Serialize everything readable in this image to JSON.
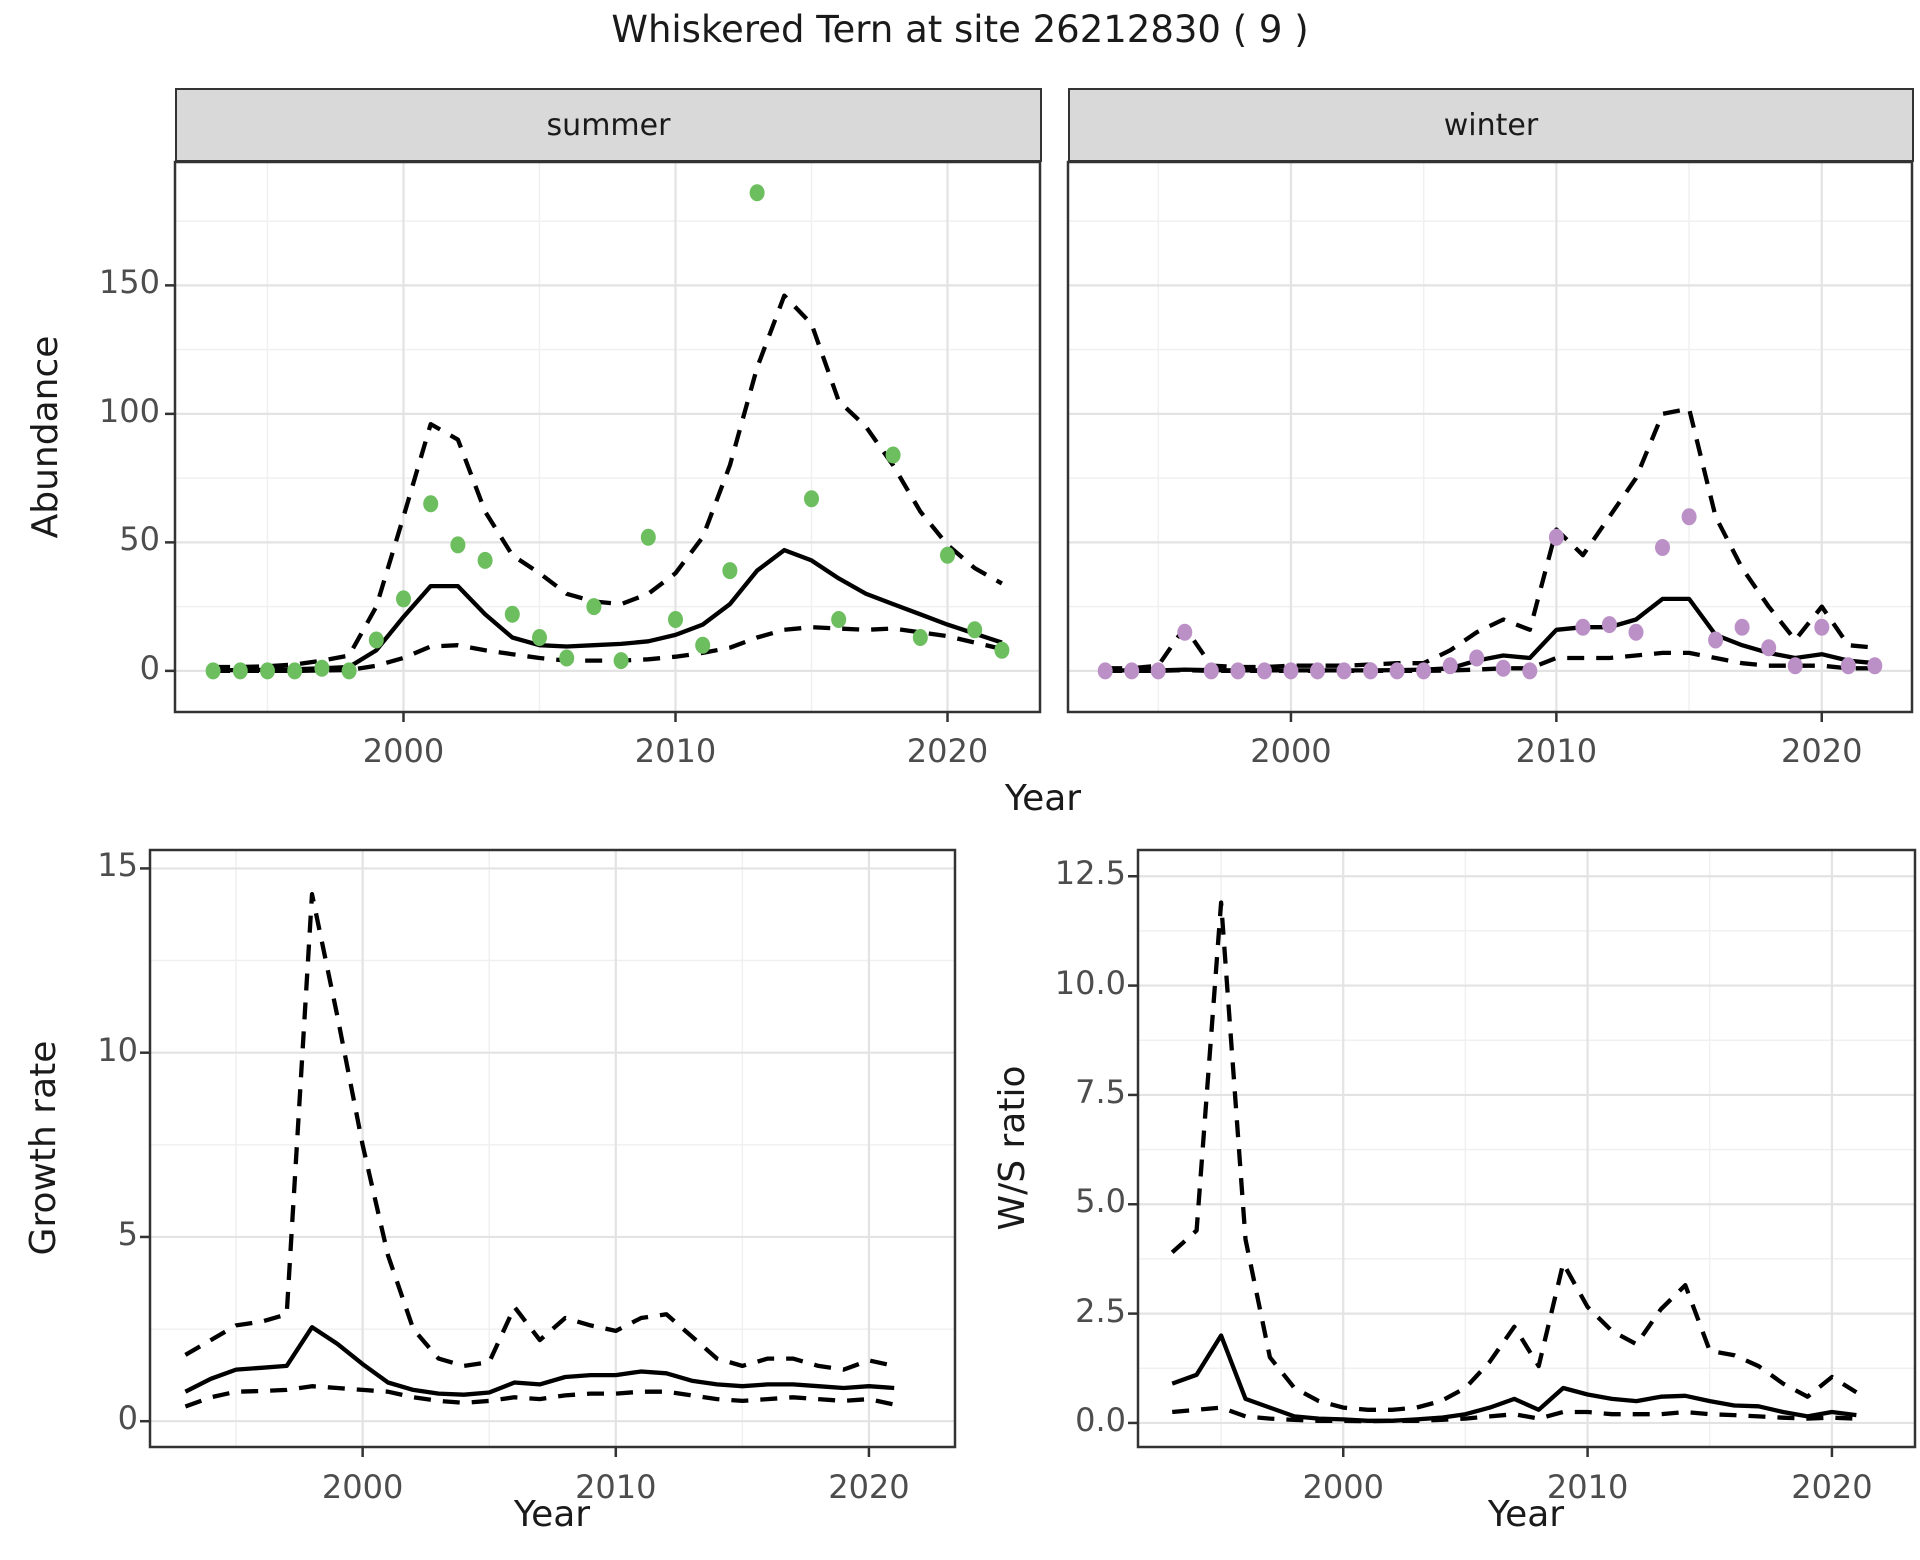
{
  "figure_title": "Whiskered Tern at site 26212830 ( 9 )",
  "colors": {
    "summer_point": "#6cbe5e",
    "winter_point": "#bb90c6",
    "line": "#000000",
    "strip_bg": "#d9d9d9",
    "panel_border": "#333333",
    "grid_major": "#e3e3e3",
    "grid_minor": "#f0f0f0",
    "tick_label": "#4d4d4d",
    "text": "#1a1a1a"
  },
  "chart_data": [
    {
      "type": "line",
      "strip_label": "summer",
      "xlabel": "Year",
      "ylabel": "Abundance",
      "xlim": [
        1991.6,
        2023.4
      ],
      "ylim": [
        -16,
        198
      ],
      "x_ticks": [
        2000,
        2010,
        2020
      ],
      "x_tick_labels": [
        "2000",
        "2010",
        "2020"
      ],
      "x_minor": [
        1995,
        2005,
        2015
      ],
      "y_ticks": [
        0,
        50,
        100,
        150
      ],
      "y_tick_labels": [
        "0",
        "50",
        "100",
        "150"
      ],
      "y_minor": [
        25,
        75,
        125,
        175
      ],
      "x": [
        1993,
        1994,
        1995,
        1996,
        1997,
        1998,
        1999,
        2000,
        2001,
        2002,
        2003,
        2004,
        2005,
        2006,
        2007,
        2008,
        2009,
        2010,
        2011,
        2012,
        2013,
        2014,
        2015,
        2016,
        2017,
        2018,
        2019,
        2020,
        2021,
        2022
      ],
      "series": [
        {
          "name": "estimate",
          "style": "solid",
          "y": [
            0.3,
            0.3,
            0.4,
            0.6,
            1,
            1.5,
            8,
            21,
            33,
            33,
            22,
            13,
            10,
            9.5,
            10,
            10.5,
            11.5,
            14,
            18,
            26,
            39,
            47,
            43,
            36,
            30,
            26,
            22,
            18,
            14.5,
            11
          ]
        },
        {
          "name": "upper-ci",
          "style": "dashed",
          "y": [
            1.5,
            1.5,
            1.8,
            2.5,
            4,
            6,
            25,
            60,
            96,
            90,
            62,
            45,
            38,
            30,
            27,
            26,
            30,
            38,
            52,
            80,
            118,
            146,
            135,
            105,
            95,
            80,
            62,
            49,
            40,
            34
          ]
        },
        {
          "name": "lower-ci",
          "style": "dashed",
          "y": [
            0,
            0,
            0,
            0,
            0.2,
            0.3,
            2,
            5,
            9.5,
            10,
            8,
            6.5,
            5,
            4,
            4,
            4,
            4.5,
            5.5,
            7,
            9,
            13,
            16,
            17,
            16.5,
            16,
            16.5,
            15,
            13.5,
            11,
            8.5
          ]
        }
      ],
      "points": {
        "name": "observed-summer",
        "color": "#6cbe5e",
        "x": [
          1993,
          1994,
          1995,
          1996,
          1997,
          1998,
          1999,
          2000,
          2001,
          2002,
          2003,
          2004,
          2005,
          2006,
          2007,
          2008,
          2009,
          2010,
          2011,
          2012,
          2013,
          2015,
          2016,
          2018,
          2019,
          2020,
          2021,
          2022
        ],
        "y": [
          0,
          0,
          0,
          0,
          1,
          0,
          12,
          28,
          65,
          49,
          43,
          22,
          13,
          5,
          25,
          4,
          52,
          20,
          10,
          39,
          186,
          67,
          20,
          84,
          13,
          45,
          16,
          8
        ]
      }
    },
    {
      "type": "line",
      "strip_label": "winter",
      "xlabel": "Year",
      "ylabel": "Abundance",
      "xlim": [
        1991.6,
        2023.4
      ],
      "ylim": [
        -16,
        198
      ],
      "x_ticks": [
        2000,
        2010,
        2020
      ],
      "x_tick_labels": [
        "2000",
        "2010",
        "2020"
      ],
      "x_minor": [
        1995,
        2005,
        2015
      ],
      "y_ticks": [
        0,
        50,
        100,
        150
      ],
      "y_tick_labels": [
        "0",
        "50",
        "100",
        "150"
      ],
      "y_minor": [
        25,
        75,
        125,
        175
      ],
      "x": [
        1993,
        1994,
        1995,
        1996,
        1997,
        1998,
        1999,
        2000,
        2001,
        2002,
        2003,
        2004,
        2005,
        2006,
        2007,
        2008,
        2009,
        2010,
        2011,
        2012,
        2013,
        2014,
        2015,
        2016,
        2017,
        2018,
        2019,
        2020,
        2021,
        2022
      ],
      "series": [
        {
          "name": "estimate",
          "style": "solid",
          "y": [
            0.2,
            0.2,
            0.2,
            0.5,
            0.3,
            0.2,
            0.2,
            0.2,
            0.2,
            0.2,
            0.2,
            0.3,
            0.5,
            1,
            4,
            6,
            5,
            16,
            17,
            17,
            20,
            28,
            28,
            14,
            10,
            7,
            5,
            6.5,
            4,
            3
          ]
        },
        {
          "name": "upper-ci",
          "style": "dashed",
          "y": [
            1,
            1,
            2,
            17,
            2,
            1.5,
            1.5,
            2,
            2,
            2,
            2.5,
            3,
            3,
            8,
            15,
            20,
            16,
            55,
            45,
            60,
            75,
            100,
            102,
            60,
            40,
            25,
            12,
            25,
            10,
            9
          ]
        },
        {
          "name": "lower-ci",
          "style": "dashed",
          "y": [
            0,
            0,
            0,
            0.3,
            0,
            0,
            0,
            0,
            0,
            0,
            0,
            0,
            0,
            0.2,
            0.5,
            1,
            1,
            5,
            5,
            5,
            6,
            7,
            7,
            5,
            3,
            2,
            2,
            2,
            1,
            1
          ]
        }
      ],
      "points": {
        "name": "observed-winter",
        "color": "#bb90c6",
        "x": [
          1993,
          1994,
          1995,
          1996,
          1997,
          1998,
          1999,
          2000,
          2001,
          2002,
          2003,
          2004,
          2005,
          2006,
          2007,
          2008,
          2009,
          2010,
          2011,
          2012,
          2013,
          2014,
          2015,
          2016,
          2017,
          2018,
          2019,
          2020,
          2021,
          2022
        ],
        "y": [
          0,
          0,
          0,
          15,
          0,
          0,
          0,
          0,
          0,
          0,
          0,
          0,
          0,
          2,
          5,
          1,
          0,
          52,
          17,
          18,
          15,
          48,
          60,
          12,
          17,
          9,
          2,
          17,
          2,
          2
        ]
      }
    },
    {
      "type": "line",
      "strip_label": "",
      "xlabel": "Year",
      "ylabel": "Growth rate",
      "xlim": [
        1991.6,
        2023.4
      ],
      "ylim": [
        -0.7,
        15.5
      ],
      "x_ticks": [
        2000,
        2010,
        2020
      ],
      "x_tick_labels": [
        "2000",
        "2010",
        "2020"
      ],
      "x_minor": [
        1995,
        2005,
        2015
      ],
      "y_ticks": [
        0,
        5,
        10,
        15
      ],
      "y_tick_labels": [
        "0",
        "5",
        "10",
        "15"
      ],
      "y_minor": [
        2.5,
        7.5,
        12.5
      ],
      "x": [
        1993,
        1994,
        1995,
        1996,
        1997,
        1998,
        1999,
        2000,
        2001,
        2002,
        2003,
        2004,
        2005,
        2006,
        2007,
        2008,
        2009,
        2010,
        2011,
        2012,
        2013,
        2014,
        2015,
        2016,
        2017,
        2018,
        2019,
        2020,
        2021
      ],
      "series": [
        {
          "name": "estimate",
          "style": "solid",
          "y": [
            0.8,
            1.15,
            1.4,
            1.45,
            1.5,
            2.55,
            2.1,
            1.55,
            1.05,
            0.85,
            0.75,
            0.72,
            0.78,
            1.05,
            1.0,
            1.2,
            1.25,
            1.25,
            1.35,
            1.3,
            1.1,
            1.0,
            0.95,
            1.0,
            1.0,
            0.95,
            0.9,
            0.95,
            0.9
          ]
        },
        {
          "name": "upper-ci",
          "style": "dashed",
          "y": [
            1.8,
            2.2,
            2.6,
            2.7,
            2.9,
            14.3,
            11.0,
            7.5,
            4.5,
            2.5,
            1.7,
            1.5,
            1.6,
            3.1,
            2.2,
            2.8,
            2.6,
            2.45,
            2.8,
            2.9,
            2.3,
            1.7,
            1.5,
            1.7,
            1.7,
            1.5,
            1.4,
            1.65,
            1.5
          ]
        },
        {
          "name": "lower-ci",
          "style": "dashed",
          "y": [
            0.4,
            0.65,
            0.8,
            0.82,
            0.85,
            0.95,
            0.9,
            0.85,
            0.8,
            0.65,
            0.55,
            0.5,
            0.55,
            0.65,
            0.6,
            0.7,
            0.75,
            0.75,
            0.8,
            0.8,
            0.7,
            0.6,
            0.55,
            0.6,
            0.65,
            0.6,
            0.55,
            0.6,
            0.45
          ]
        }
      ],
      "points": null
    },
    {
      "type": "line",
      "strip_label": "",
      "xlabel": "Year",
      "ylabel": "W/S ratio",
      "xlim": [
        1991.6,
        2023.4
      ],
      "ylim": [
        -0.55,
        13.1
      ],
      "x_ticks": [
        2000,
        2010,
        2020
      ],
      "x_tick_labels": [
        "2000",
        "2010",
        "2020"
      ],
      "x_minor": [
        1995,
        2005,
        2015
      ],
      "y_ticks": [
        0,
        2.5,
        5,
        7.5,
        10,
        12.5
      ],
      "y_tick_labels": [
        "0.0",
        "2.5",
        "5.0",
        "7.5",
        "10.0",
        "12.5"
      ],
      "y_minor": [
        1.25,
        3.75,
        6.25,
        8.75,
        11.25
      ],
      "x": [
        1993,
        1994,
        1995,
        1996,
        1997,
        1998,
        1999,
        2000,
        2001,
        2002,
        2003,
        2004,
        2005,
        2006,
        2007,
        2008,
        2009,
        2010,
        2011,
        2012,
        2013,
        2014,
        2015,
        2016,
        2017,
        2018,
        2019,
        2020,
        2021
      ],
      "series": [
        {
          "name": "estimate",
          "style": "solid",
          "y": [
            0.9,
            1.1,
            2.0,
            0.55,
            0.35,
            0.15,
            0.1,
            0.08,
            0.05,
            0.05,
            0.08,
            0.12,
            0.2,
            0.35,
            0.55,
            0.3,
            0.8,
            0.65,
            0.55,
            0.5,
            0.6,
            0.62,
            0.5,
            0.4,
            0.38,
            0.25,
            0.15,
            0.25,
            0.18
          ]
        },
        {
          "name": "upper-ci",
          "style": "dashed",
          "y": [
            3.9,
            4.4,
            11.9,
            4.2,
            1.5,
            0.8,
            0.5,
            0.35,
            0.3,
            0.3,
            0.35,
            0.5,
            0.8,
            1.4,
            2.2,
            1.3,
            3.65,
            2.65,
            2.1,
            1.8,
            2.6,
            3.15,
            1.65,
            1.55,
            1.3,
            0.9,
            0.6,
            1.05,
            0.7
          ]
        },
        {
          "name": "lower-ci",
          "style": "dashed",
          "y": [
            0.25,
            0.3,
            0.35,
            0.15,
            0.1,
            0.07,
            0.05,
            0.05,
            0.04,
            0.05,
            0.05,
            0.07,
            0.1,
            0.15,
            0.2,
            0.1,
            0.25,
            0.25,
            0.2,
            0.2,
            0.2,
            0.25,
            0.2,
            0.18,
            0.15,
            0.12,
            0.1,
            0.12,
            0.1
          ]
        }
      ],
      "points": null
    }
  ]
}
